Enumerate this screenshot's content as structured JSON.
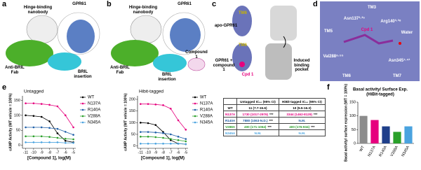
{
  "panels": [
    {
      "letter": "a",
      "labels": [
        "Hinge-binding nanobody",
        "GPR61",
        "Anti-BRIL Fab",
        "BRIL insertion"
      ]
    },
    {
      "letter": "b",
      "labels": [
        "Hinge-binding nanobody",
        "GPR61",
        "Anti-BRIL Fab",
        "BRIL insertion",
        "Compound 1"
      ]
    },
    {
      "letter": "c",
      "labels": [
        "TM6",
        "apo-GPR61",
        "TM6",
        "GPR61 + compound 1",
        "Cpd 1",
        "Induced binding pocket"
      ]
    },
    {
      "letter": "d",
      "labels": [
        "TM3",
        "Asn137³·³⁵",
        "Arg140³·³⁸",
        "TM5",
        "Cpd 1",
        "Water",
        "Val288⁶·⁵⁵",
        "Asn345⁷·⁴¹",
        "TM6",
        "TM7"
      ]
    },
    {
      "letter": "e"
    },
    {
      "letter": "f"
    }
  ],
  "table": {
    "header": [
      "Untagged IC₅₀ (95% CI)",
      "HiBit-tagged IC₅₀ (95% CI)"
    ],
    "rows": [
      {
        "name": "WT",
        "color": "#000000",
        "untagged": "11 (7.7-15.6)",
        "hibit": "10 (5.5-16.3)"
      },
      {
        "name": "N137A",
        "color": "#e6007e",
        "untagged": "1730 (1017-2976)",
        "untagged_sig": "***",
        "hibit": "3344 (1462-8129)",
        "hibit_sig": "***"
      },
      {
        "name": "R140A",
        "color": "#1f5fa8",
        "untagged": "7880 (1063-N.D.)",
        "untagged_sig": "***",
        "hibit": "N.M."
      },
      {
        "name": "V288A",
        "color": "#2aa02a",
        "untagged": "400 (171-1064)",
        "untagged_sig": "***",
        "hibit": "400 (176-934)",
        "hibit_sig": "***"
      },
      {
        "name": "N345A",
        "color": "#4aa3df",
        "untagged": "N.M.",
        "hibit": "N.M."
      }
    ]
  },
  "chart_data": [
    {
      "type": "line",
      "title": "Untagged",
      "x_label": "[Compound 1], log(M)",
      "y_label": "cAMP Activity (WT vehicle = 100%)",
      "x": [
        -11,
        -10,
        -9,
        -8,
        -7,
        -6,
        -5
      ],
      "xlim": [
        -11.4,
        -4.7
      ],
      "xticks": [
        -11,
        -10,
        -9,
        -8,
        -7,
        -6,
        -5
      ],
      "ylim": [
        -10,
        165
      ],
      "yticks": [
        0,
        50,
        100,
        150
      ],
      "series": [
        {
          "name": "WT",
          "color": "#000000",
          "values": [
            100,
            98,
            95,
            80,
            40,
            15,
            10
          ]
        },
        {
          "name": "N137A",
          "color": "#e6007e",
          "values": [
            140,
            140,
            138,
            135,
            130,
            100,
            60
          ]
        },
        {
          "name": "R140A",
          "color": "#1f5fa8",
          "values": [
            60,
            60,
            60,
            58,
            55,
            45,
            35
          ]
        },
        {
          "name": "V288A",
          "color": "#2aa02a",
          "values": [
            30,
            30,
            30,
            28,
            25,
            22,
            20
          ]
        },
        {
          "name": "N345A",
          "color": "#4aa3df",
          "values": [
            10,
            10,
            10,
            10,
            10,
            8,
            8
          ]
        }
      ]
    },
    {
      "type": "line",
      "title": "Hibit-tagged",
      "x_label": "[Compound 1], log(M)",
      "y_label": "cAMP Activity (WT vehicle = 100%)",
      "x": [
        -11,
        -10,
        -9,
        -8,
        -7,
        -6,
        -5
      ],
      "xlim": [
        -11.4,
        -4.7
      ],
      "xticks": [
        -11,
        -10,
        -9,
        -8,
        -7,
        -6,
        -5
      ],
      "ylim": [
        -10,
        215
      ],
      "yticks": [
        0,
        50,
        100,
        150,
        200
      ],
      "series": [
        {
          "name": "WT",
          "color": "#000000",
          "values": [
            100,
            98,
            90,
            60,
            25,
            10,
            8
          ]
        },
        {
          "name": "N137A",
          "color": "#e6007e",
          "values": [
            180,
            180,
            178,
            175,
            160,
            110,
            70
          ]
        },
        {
          "name": "R140A",
          "color": "#1f5fa8",
          "values": [
            60,
            60,
            58,
            55,
            50,
            40,
            30
          ]
        },
        {
          "name": "V288A",
          "color": "#2aa02a",
          "values": [
            40,
            40,
            38,
            35,
            30,
            25,
            20
          ]
        },
        {
          "name": "N345A",
          "color": "#4aa3df",
          "values": [
            10,
            10,
            10,
            10,
            10,
            10,
            8
          ]
        }
      ]
    },
    {
      "type": "bar",
      "title": [
        "Basal activity/ Surface Exp.",
        "(HiBit-tagged)"
      ],
      "y_label": "Basal activity/ surface expression (WT = 100%)",
      "categories": [
        "WT",
        "N137A",
        "R140A",
        "V288A",
        "N345A"
      ],
      "values": [
        100,
        85,
        62,
        42,
        62
      ],
      "colors": [
        "#8c8c8c",
        "#e6007e",
        "#1f3f8a",
        "#2aa02a",
        "#4aa3df"
      ],
      "ylim": [
        0,
        150
      ],
      "yticks": [
        0,
        50,
        100,
        150
      ]
    }
  ]
}
